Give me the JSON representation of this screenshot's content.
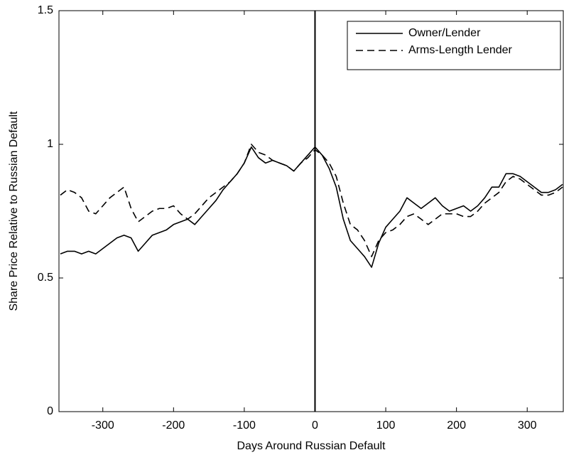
{
  "chart_data": {
    "type": "line",
    "x_label": "Days Around Russian Default",
    "y_label": "Share Price Relative to Russian Default",
    "x": [
      -360,
      -350,
      -340,
      -330,
      -320,
      -310,
      -300,
      -290,
      -280,
      -270,
      -260,
      -250,
      -240,
      -230,
      -220,
      -210,
      -200,
      -190,
      -180,
      -170,
      -160,
      -150,
      -140,
      -130,
      -120,
      -110,
      -100,
      -90,
      -80,
      -70,
      -60,
      -50,
      -40,
      -30,
      -20,
      -10,
      0,
      10,
      20,
      30,
      40,
      50,
      60,
      70,
      80,
      90,
      100,
      110,
      120,
      130,
      140,
      150,
      160,
      170,
      180,
      190,
      200,
      210,
      220,
      230,
      240,
      250,
      260,
      270,
      280,
      290,
      300,
      310,
      320,
      330,
      340,
      350
    ],
    "series": [
      {
        "name": "Owner/Lender",
        "color": "#000000",
        "style": "solid",
        "values": [
          0.59,
          0.6,
          0.6,
          0.59,
          0.6,
          0.59,
          0.61,
          0.63,
          0.65,
          0.66,
          0.65,
          0.6,
          0.63,
          0.66,
          0.67,
          0.68,
          0.7,
          0.71,
          0.72,
          0.7,
          0.73,
          0.76,
          0.79,
          0.83,
          0.86,
          0.89,
          0.93,
          0.99,
          0.95,
          0.93,
          0.94,
          0.93,
          0.92,
          0.9,
          0.93,
          0.96,
          0.99,
          0.96,
          0.91,
          0.84,
          0.72,
          0.64,
          0.61,
          0.58,
          0.54,
          0.63,
          0.69,
          0.72,
          0.75,
          0.8,
          0.78,
          0.76,
          0.78,
          0.8,
          0.77,
          0.75,
          0.76,
          0.77,
          0.75,
          0.77,
          0.8,
          0.84,
          0.84,
          0.89,
          0.89,
          0.88,
          0.86,
          0.84,
          0.82,
          0.82,
          0.83,
          0.85
        ]
      },
      {
        "name": "Arms-Length Lender",
        "color": "#000000",
        "style": "dashed",
        "values": [
          0.81,
          0.83,
          0.82,
          0.8,
          0.75,
          0.74,
          0.77,
          0.8,
          0.82,
          0.84,
          0.76,
          0.71,
          0.73,
          0.75,
          0.76,
          0.76,
          0.77,
          0.74,
          0.72,
          0.74,
          0.77,
          0.8,
          0.82,
          0.84,
          0.86,
          0.89,
          0.93,
          1.0,
          0.97,
          0.96,
          0.94,
          0.93,
          0.92,
          0.9,
          0.93,
          0.95,
          0.98,
          0.96,
          0.93,
          0.88,
          0.78,
          0.7,
          0.68,
          0.64,
          0.58,
          0.64,
          0.67,
          0.68,
          0.7,
          0.73,
          0.74,
          0.72,
          0.7,
          0.72,
          0.74,
          0.74,
          0.74,
          0.73,
          0.73,
          0.75,
          0.78,
          0.8,
          0.82,
          0.86,
          0.88,
          0.87,
          0.85,
          0.83,
          0.81,
          0.81,
          0.82,
          0.84
        ]
      }
    ],
    "xlim": [
      -362,
      351
    ],
    "xticks": [
      -300,
      -200,
      -100,
      0,
      100,
      200,
      300
    ],
    "ylim": [
      0,
      1.5
    ],
    "yticks": [
      0,
      0.5,
      1,
      1.5
    ],
    "vline": 0,
    "legend": "upper right",
    "grid": false
  }
}
